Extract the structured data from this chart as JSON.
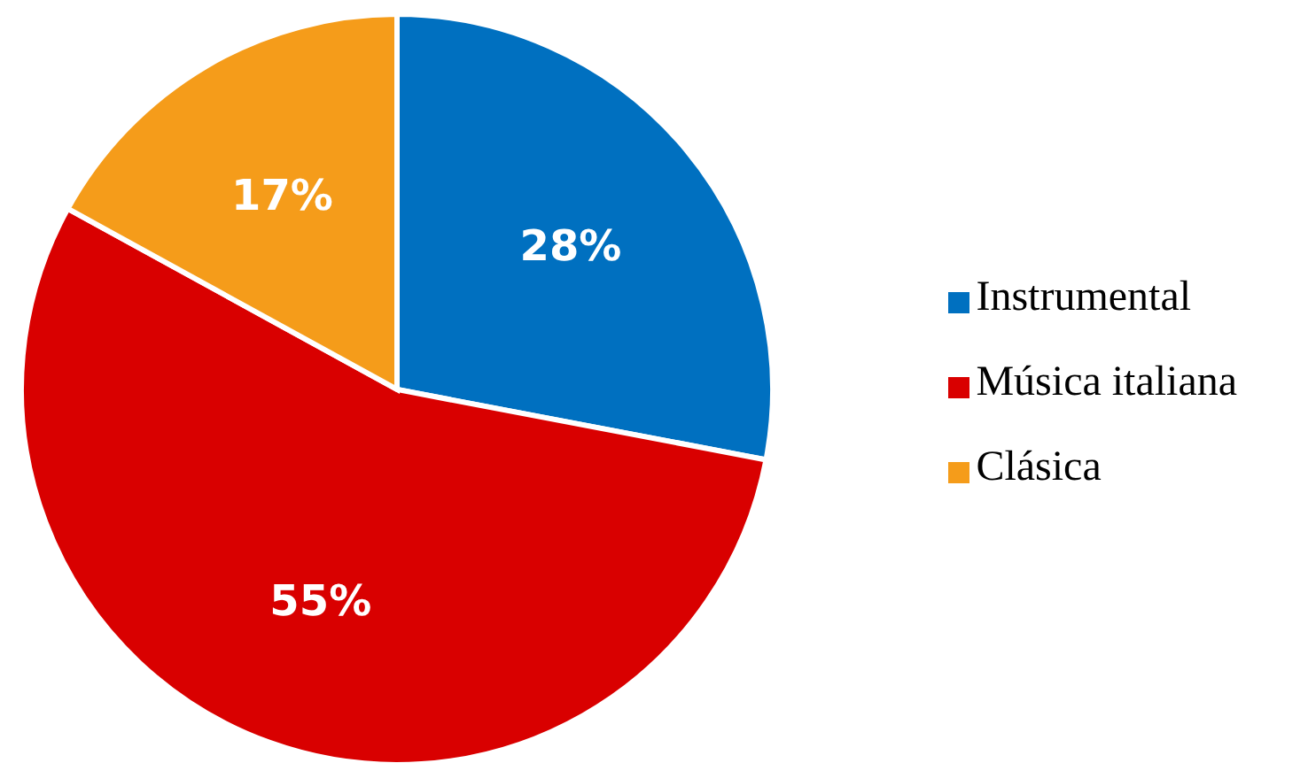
{
  "chart_data": {
    "type": "pie",
    "categories": [
      "Instrumental",
      "Música italiana",
      "Clásica"
    ],
    "values": [
      28,
      55,
      17
    ],
    "colors": [
      "#0070c0",
      "#d90000",
      "#f59c1a"
    ],
    "value_labels": [
      "28%",
      "55%",
      "17%"
    ],
    "legend": "right"
  }
}
